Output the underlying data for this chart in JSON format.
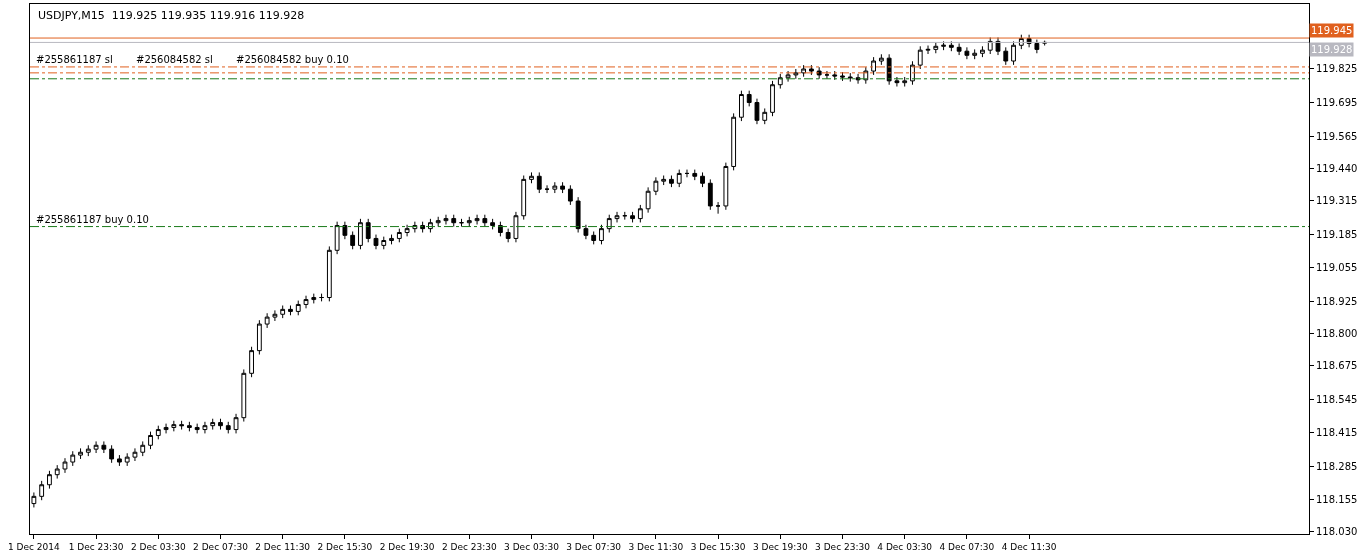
{
  "chart_data": {
    "type": "candlestick",
    "title": "USDJPY,M15  119.925 119.935 119.916 119.928",
    "color": "#000000",
    "x": [
      "2014-12-01T19:30",
      "2014-12-01T20:00",
      "2014-12-01T20:30",
      "2014-12-01T21:00",
      "2014-12-01T21:30",
      "2014-12-01T22:00",
      "2014-12-01T22:30",
      "2014-12-01T23:00",
      "2014-12-01T23:30",
      "2014-12-02T00:00",
      "2014-12-02T00:30",
      "2014-12-02T01:00",
      "2014-12-02T01:30",
      "2014-12-02T02:00",
      "2014-12-02T02:30",
      "2014-12-02T03:00",
      "2014-12-02T03:30",
      "2014-12-02T04:00",
      "2014-12-02T04:30",
      "2014-12-02T05:00",
      "2014-12-02T05:30",
      "2014-12-02T06:00",
      "2014-12-02T06:30",
      "2014-12-02T07:00",
      "2014-12-02T07:30",
      "2014-12-02T08:00",
      "2014-12-02T08:30",
      "2014-12-02T09:00",
      "2014-12-02T09:30",
      "2014-12-02T10:00",
      "2014-12-02T10:30",
      "2014-12-02T11:00",
      "2014-12-02T11:30",
      "2014-12-02T12:00",
      "2014-12-02T12:30",
      "2014-12-02T13:00",
      "2014-12-02T13:30",
      "2014-12-02T14:00",
      "2014-12-02T14:30",
      "2014-12-02T15:00",
      "2014-12-02T15:30",
      "2014-12-02T16:00",
      "2014-12-02T16:30",
      "2014-12-02T17:00",
      "2014-12-02T17:30",
      "2014-12-02T18:00",
      "2014-12-02T18:30",
      "2014-12-02T19:00",
      "2014-12-02T19:30",
      "2014-12-02T20:00",
      "2014-12-02T20:30",
      "2014-12-02T21:00",
      "2014-12-02T21:30",
      "2014-12-02T22:00",
      "2014-12-02T22:30",
      "2014-12-02T23:00",
      "2014-12-02T23:30",
      "2014-12-03T00:00",
      "2014-12-03T00:30",
      "2014-12-03T01:00",
      "2014-12-03T01:30",
      "2014-12-03T02:00",
      "2014-12-03T02:30",
      "2014-12-03T03:00",
      "2014-12-03T03:30",
      "2014-12-03T04:00",
      "2014-12-03T04:30",
      "2014-12-03T05:00",
      "2014-12-03T05:30",
      "2014-12-03T06:00",
      "2014-12-03T06:30",
      "2014-12-03T07:00",
      "2014-12-03T07:30",
      "2014-12-03T08:00",
      "2014-12-03T08:30",
      "2014-12-03T09:00",
      "2014-12-03T09:30",
      "2014-12-03T10:00",
      "2014-12-03T10:30",
      "2014-12-03T11:00",
      "2014-12-03T11:30",
      "2014-12-03T12:00",
      "2014-12-03T12:30",
      "2014-12-03T13:00",
      "2014-12-03T13:30",
      "2014-12-03T14:00",
      "2014-12-03T14:30",
      "2014-12-03T15:00",
      "2014-12-03T15:30",
      "2014-12-03T16:00",
      "2014-12-03T16:30",
      "2014-12-03T17:00",
      "2014-12-03T17:30",
      "2014-12-03T18:00",
      "2014-12-03T18:30",
      "2014-12-03T19:00",
      "2014-12-03T19:30",
      "2014-12-03T20:00",
      "2014-12-03T20:30",
      "2014-12-03T21:00",
      "2014-12-03T21:30",
      "2014-12-03T22:00",
      "2014-12-03T22:30",
      "2014-12-03T23:00",
      "2014-12-03T23:30",
      "2014-12-04T00:00",
      "2014-12-04T00:30",
      "2014-12-04T01:00",
      "2014-12-04T01:30",
      "2014-12-04T02:00",
      "2014-12-04T02:30",
      "2014-12-04T03:00",
      "2014-12-04T03:30",
      "2014-12-04T04:00",
      "2014-12-04T04:30",
      "2014-12-04T05:00",
      "2014-12-04T05:30",
      "2014-12-04T06:00",
      "2014-12-04T06:30",
      "2014-12-04T07:00",
      "2014-12-04T07:30",
      "2014-12-04T08:00",
      "2014-12-04T08:30",
      "2014-12-04T09:00",
      "2014-12-04T09:30",
      "2014-12-04T10:00",
      "2014-12-04T10:30",
      "2014-12-04T11:00",
      "2014-12-04T11:30",
      "2014-12-04T12:00",
      "2014-12-04T12:30"
    ],
    "ohlc": [
      [
        118.14,
        118.183,
        118.125,
        118.168
      ],
      [
        118.168,
        118.228,
        118.153,
        118.213
      ],
      [
        118.213,
        118.267,
        118.198,
        118.252
      ],
      [
        118.252,
        118.289,
        118.237,
        118.274
      ],
      [
        118.274,
        118.316,
        118.259,
        118.301
      ],
      [
        118.301,
        118.343,
        118.286,
        118.328
      ],
      [
        118.328,
        118.354,
        118.313,
        118.339
      ],
      [
        118.339,
        118.366,
        118.324,
        118.351
      ],
      [
        118.351,
        118.381,
        118.336,
        118.366
      ],
      [
        118.366,
        118.381,
        118.336,
        118.351
      ],
      [
        118.351,
        118.366,
        118.298,
        118.313
      ],
      [
        118.313,
        118.328,
        118.286,
        118.301
      ],
      [
        118.301,
        118.335,
        118.286,
        118.32
      ],
      [
        118.32,
        118.354,
        118.305,
        118.339
      ],
      [
        118.339,
        118.381,
        118.324,
        118.366
      ],
      [
        118.366,
        118.419,
        118.351,
        118.404
      ],
      [
        118.404,
        118.442,
        118.389,
        118.427
      ],
      [
        118.427,
        118.45,
        118.412,
        118.435
      ],
      [
        118.435,
        118.461,
        118.42,
        118.446
      ],
      [
        118.446,
        118.461,
        118.427,
        118.442
      ],
      [
        118.442,
        118.457,
        118.42,
        118.435
      ],
      [
        118.435,
        118.45,
        118.412,
        118.427
      ],
      [
        118.427,
        118.457,
        118.412,
        118.442
      ],
      [
        118.442,
        118.469,
        118.427,
        118.454
      ],
      [
        118.454,
        118.469,
        118.427,
        118.442
      ],
      [
        118.442,
        118.457,
        118.412,
        118.427
      ],
      [
        118.427,
        118.488,
        118.412,
        118.473
      ],
      [
        118.473,
        118.66,
        118.458,
        118.645
      ],
      [
        118.645,
        118.748,
        118.63,
        118.733
      ],
      [
        118.733,
        118.851,
        118.718,
        118.836
      ],
      [
        118.836,
        118.878,
        118.821,
        118.863
      ],
      [
        118.863,
        118.889,
        118.848,
        118.874
      ],
      [
        118.874,
        118.908,
        118.859,
        118.893
      ],
      [
        118.893,
        118.908,
        118.87,
        118.885
      ],
      [
        118.885,
        118.927,
        118.87,
        118.912
      ],
      [
        118.912,
        118.946,
        118.897,
        118.931
      ],
      [
        118.931,
        118.954,
        118.916,
        118.939
      ],
      [
        118.939,
        118.954,
        118.924,
        118.939
      ],
      [
        118.939,
        119.137,
        118.924,
        119.122
      ],
      [
        119.122,
        119.233,
        119.107,
        119.218
      ],
      [
        119.218,
        119.233,
        119.165,
        119.18
      ],
      [
        119.18,
        119.195,
        119.126,
        119.141
      ],
      [
        119.141,
        119.244,
        119.126,
        119.229
      ],
      [
        119.229,
        119.244,
        119.153,
        119.168
      ],
      [
        119.168,
        119.183,
        119.126,
        119.141
      ],
      [
        119.141,
        119.175,
        119.126,
        119.16
      ],
      [
        119.16,
        119.183,
        119.145,
        119.168
      ],
      [
        119.168,
        119.206,
        119.153,
        119.191
      ],
      [
        119.191,
        119.221,
        119.176,
        119.206
      ],
      [
        119.206,
        119.233,
        119.191,
        119.218
      ],
      [
        119.218,
        119.233,
        119.191,
        119.206
      ],
      [
        119.206,
        119.244,
        119.191,
        119.229
      ],
      [
        119.229,
        119.252,
        119.214,
        119.237
      ],
      [
        119.237,
        119.26,
        119.222,
        119.245
      ],
      [
        119.245,
        119.26,
        119.214,
        119.229
      ],
      [
        119.229,
        119.244,
        119.214,
        119.229
      ],
      [
        119.229,
        119.252,
        119.214,
        119.237
      ],
      [
        119.237,
        119.26,
        119.222,
        119.245
      ],
      [
        119.245,
        119.26,
        119.214,
        119.229
      ],
      [
        119.229,
        119.244,
        119.203,
        119.218
      ],
      [
        119.218,
        119.233,
        119.176,
        119.191
      ],
      [
        119.191,
        119.206,
        119.153,
        119.168
      ],
      [
        119.168,
        119.271,
        119.153,
        119.256
      ],
      [
        119.256,
        119.412,
        119.241,
        119.397
      ],
      [
        119.397,
        119.424,
        119.382,
        119.409
      ],
      [
        119.409,
        119.424,
        119.344,
        119.359
      ],
      [
        119.359,
        119.374,
        119.344,
        119.359
      ],
      [
        119.359,
        119.386,
        119.344,
        119.371
      ],
      [
        119.371,
        119.386,
        119.344,
        119.359
      ],
      [
        119.359,
        119.374,
        119.298,
        119.313
      ],
      [
        119.313,
        119.328,
        119.191,
        119.206
      ],
      [
        119.206,
        119.221,
        119.165,
        119.18
      ],
      [
        119.18,
        119.195,
        119.145,
        119.16
      ],
      [
        119.16,
        119.221,
        119.145,
        119.206
      ],
      [
        119.206,
        119.26,
        119.191,
        119.245
      ],
      [
        119.245,
        119.271,
        119.23,
        119.256
      ],
      [
        119.256,
        119.271,
        119.241,
        119.256
      ],
      [
        119.256,
        119.271,
        119.23,
        119.245
      ],
      [
        119.245,
        119.298,
        119.23,
        119.283
      ],
      [
        119.283,
        119.366,
        119.268,
        119.351
      ],
      [
        119.351,
        119.405,
        119.336,
        119.39
      ],
      [
        119.39,
        119.412,
        119.375,
        119.397
      ],
      [
        119.397,
        119.412,
        119.367,
        119.382
      ],
      [
        119.382,
        119.435,
        119.367,
        119.42
      ],
      [
        119.42,
        119.435,
        119.405,
        119.42
      ],
      [
        119.42,
        119.435,
        119.394,
        119.409
      ],
      [
        119.409,
        119.424,
        119.367,
        119.382
      ],
      [
        119.382,
        119.397,
        119.279,
        119.294
      ],
      [
        119.294,
        119.309,
        119.264,
        119.294
      ],
      [
        119.294,
        119.462,
        119.279,
        119.447
      ],
      [
        119.447,
        119.653,
        119.432,
        119.638
      ],
      [
        119.638,
        119.741,
        119.623,
        119.726
      ],
      [
        119.726,
        119.741,
        119.68,
        119.695
      ],
      [
        119.695,
        119.71,
        119.611,
        119.626
      ],
      [
        119.626,
        119.672,
        119.611,
        119.657
      ],
      [
        119.657,
        119.779,
        119.642,
        119.764
      ],
      [
        119.764,
        119.806,
        119.749,
        119.791
      ],
      [
        119.791,
        119.817,
        119.776,
        119.802
      ],
      [
        119.802,
        119.825,
        119.787,
        119.81
      ],
      [
        119.81,
        119.84,
        119.795,
        119.825
      ],
      [
        119.825,
        119.84,
        119.802,
        119.817
      ],
      [
        119.817,
        119.832,
        119.787,
        119.802
      ],
      [
        119.802,
        119.817,
        119.787,
        119.802
      ],
      [
        119.802,
        119.817,
        119.783,
        119.798
      ],
      [
        119.798,
        119.813,
        119.779,
        119.794
      ],
      [
        119.794,
        119.809,
        119.776,
        119.791
      ],
      [
        119.791,
        119.806,
        119.768,
        119.783
      ],
      [
        119.783,
        119.832,
        119.768,
        119.817
      ],
      [
        119.817,
        119.871,
        119.802,
        119.856
      ],
      [
        119.856,
        119.882,
        119.841,
        119.867
      ],
      [
        119.867,
        119.882,
        119.764,
        119.779
      ],
      [
        119.779,
        119.794,
        119.757,
        119.772
      ],
      [
        119.772,
        119.794,
        119.757,
        119.779
      ],
      [
        119.779,
        119.855,
        119.764,
        119.84
      ],
      [
        119.84,
        119.913,
        119.825,
        119.898
      ],
      [
        119.898,
        119.916,
        119.883,
        119.901
      ],
      [
        119.901,
        119.928,
        119.886,
        119.913
      ],
      [
        119.913,
        119.932,
        119.898,
        119.917
      ],
      [
        119.917,
        119.932,
        119.894,
        119.909
      ],
      [
        119.909,
        119.924,
        119.879,
        119.894
      ],
      [
        119.894,
        119.909,
        119.863,
        119.878
      ],
      [
        119.878,
        119.901,
        119.863,
        119.886
      ],
      [
        119.886,
        119.913,
        119.871,
        119.898
      ],
      [
        119.898,
        119.947,
        119.883,
        119.932
      ],
      [
        119.932,
        119.947,
        119.879,
        119.894
      ],
      [
        119.894,
        119.909,
        119.841,
        119.856
      ],
      [
        119.856,
        119.932,
        119.841,
        119.917
      ],
      [
        119.917,
        119.958,
        119.902,
        119.943
      ],
      [
        119.943,
        119.958,
        119.909,
        119.924
      ],
      [
        119.924,
        119.939,
        119.886,
        119.901
      ],
      [
        119.925,
        119.935,
        119.916,
        119.928
      ]
    ],
    "xlim": [
      "2014-12-01T19:15",
      "2014-12-05T05:30"
    ],
    "xticks": [
      {
        "value": "2014-12-01T19:30",
        "label": "1 Dec 2014"
      },
      {
        "value": "2014-12-01T23:30",
        "label": "1 Dec 23:30"
      },
      {
        "value": "2014-12-02T03:30",
        "label": "2 Dec 03:30"
      },
      {
        "value": "2014-12-02T07:30",
        "label": "2 Dec 07:30"
      },
      {
        "value": "2014-12-02T11:30",
        "label": "2 Dec 11:30"
      },
      {
        "value": "2014-12-02T15:30",
        "label": "2 Dec 15:30"
      },
      {
        "value": "2014-12-02T19:30",
        "label": "2 Dec 19:30"
      },
      {
        "value": "2014-12-02T23:30",
        "label": "2 Dec 23:30"
      },
      {
        "value": "2014-12-03T03:30",
        "label": "3 Dec 03:30"
      },
      {
        "value": "2014-12-03T07:30",
        "label": "3 Dec 07:30"
      },
      {
        "value": "2014-12-03T11:30",
        "label": "3 Dec 11:30"
      },
      {
        "value": "2014-12-03T15:30",
        "label": "3 Dec 15:30"
      },
      {
        "value": "2014-12-03T19:30",
        "label": "3 Dec 19:30"
      },
      {
        "value": "2014-12-03T23:30",
        "label": "3 Dec 23:30"
      },
      {
        "value": "2014-12-04T03:30",
        "label": "4 Dec 03:30"
      },
      {
        "value": "2014-12-04T07:30",
        "label": "4 Dec 07:30"
      },
      {
        "value": "2014-12-04T11:30",
        "label": "4 Dec 11:30"
      }
    ],
    "ylim": [
      118.022,
      120.077
    ],
    "yticks": [
      {
        "value": 118.03,
        "label": "118.030"
      },
      118.155,
      118.285,
      118.415,
      118.545,
      118.675,
      {
        "value": 118.8,
        "label": "118.800"
      },
      118.925,
      119.055,
      119.185,
      119.315,
      {
        "value": 119.44,
        "label": "119.440"
      },
      119.565,
      119.695,
      119.825
    ],
    "ref_lines": [
      {
        "axis": "y",
        "value": 119.945,
        "label": "119.945",
        "color": "#e0601e",
        "line_style": "solid"
      },
      {
        "axis": "y",
        "value": 119.928,
        "label": "119.928",
        "color": "#b8b8c0",
        "line_style": "solid"
      },
      {
        "axis": "y",
        "value": 119.833,
        "label": "#255861187 sl",
        "color": "#e0601e",
        "line_style": "dashdot"
      },
      {
        "axis": "y",
        "value": 119.81,
        "label": "#256084582 sl",
        "color": "#e0601e",
        "line_style": "dashdot"
      },
      {
        "axis": "y",
        "value": 119.787,
        "label": "#256084582 buy 0.10",
        "color": "#1a7a1a",
        "line_style": "dashdot"
      },
      {
        "axis": "y",
        "value": 119.214,
        "label": "#255861187 buy 0.10",
        "color": "#1a7a1a",
        "line_style": "dashdot"
      }
    ],
    "legend": false
  }
}
